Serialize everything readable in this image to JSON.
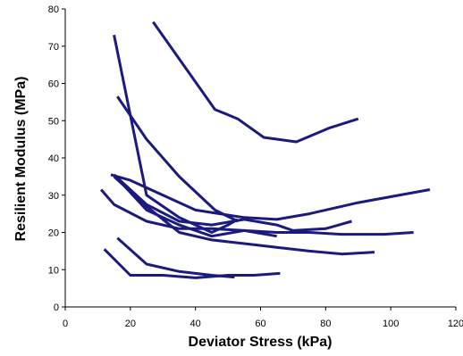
{
  "chart_data": {
    "type": "line",
    "title": "",
    "xlabel": "Deviator Stress (kPa)",
    "ylabel": "Resilient Modulus (MPa)",
    "xlim": [
      0,
      120
    ],
    "ylim": [
      0,
      80
    ],
    "xticks": [
      "0",
      "20",
      "40",
      "60",
      "80",
      "100",
      "120"
    ],
    "yticks": [
      "0",
      "10",
      "20",
      "30",
      "40",
      "50",
      "60",
      "70",
      "80"
    ],
    "grid": false,
    "legend": "none",
    "line_color": "#1a1a80",
    "series": [
      {
        "x": [
          27,
          46,
          53,
          61,
          71,
          81,
          90
        ],
        "y": [
          76.5,
          53,
          50.5,
          45.5,
          44.3,
          48,
          50.5
        ]
      },
      {
        "x": [
          15,
          25,
          35,
          45,
          50,
          53
        ],
        "y": [
          73,
          30,
          24,
          20,
          22,
          23.5
        ]
      },
      {
        "x": [
          16,
          25,
          35,
          46,
          53
        ],
        "y": [
          56.5,
          45,
          35,
          26,
          23
        ]
      },
      {
        "x": [
          14,
          20,
          30,
          40,
          55,
          65,
          75,
          90,
          112
        ],
        "y": [
          35.5,
          34,
          30,
          26,
          24,
          23.5,
          25,
          28,
          31.5
        ]
      },
      {
        "x": [
          11,
          15,
          25,
          35,
          45,
          55,
          65,
          75,
          85,
          98,
          107
        ],
        "y": [
          31.5,
          27.5,
          23,
          21,
          21,
          20.5,
          20,
          20,
          19.5,
          19.5,
          20
        ]
      },
      {
        "x": [
          15,
          25,
          35,
          45,
          55,
          65,
          70,
          80,
          88
        ],
        "y": [
          35.5,
          27.5,
          23,
          22,
          23.5,
          22,
          20.5,
          21,
          23
        ]
      },
      {
        "x": [
          16,
          25,
          35,
          45,
          55,
          65
        ],
        "y": [
          34.5,
          26,
          22,
          19,
          20.5,
          19
        ]
      },
      {
        "x": [
          15,
          25,
          35,
          45,
          55,
          65,
          75,
          85,
          95
        ],
        "y": [
          35,
          27,
          20,
          18,
          17,
          16,
          15,
          14.2,
          14.7
        ]
      },
      {
        "x": [
          16,
          25,
          35,
          45,
          52
        ],
        "y": [
          18.5,
          11.5,
          9.5,
          8.5,
          8
        ]
      },
      {
        "x": [
          12,
          20,
          30,
          40,
          50,
          58,
          66
        ],
        "y": [
          15.5,
          8.5,
          8.5,
          7.8,
          8.5,
          8.5,
          9
        ]
      }
    ]
  }
}
